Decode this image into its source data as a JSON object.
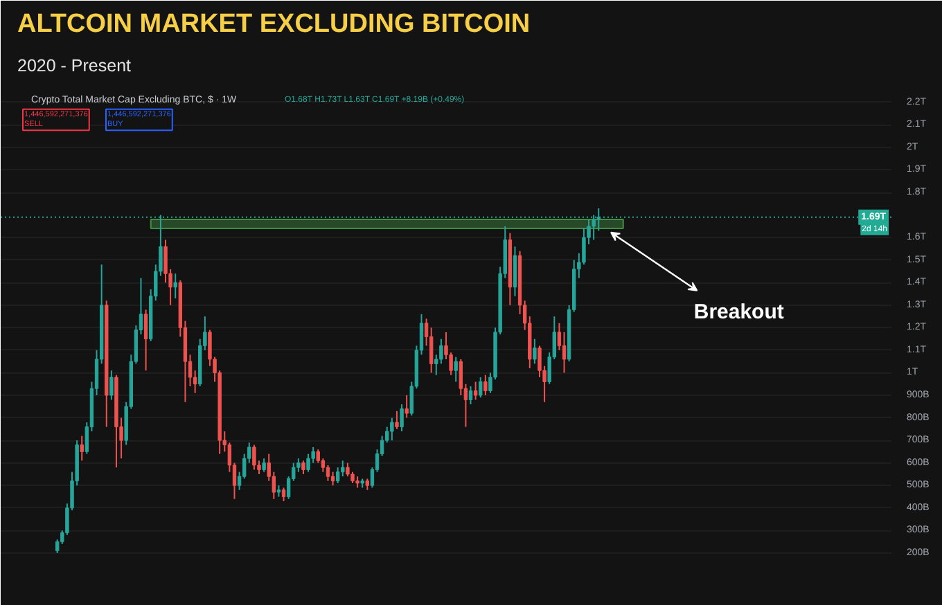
{
  "chart_data": {
    "type": "candlestick",
    "title": "ALTCOIN MARKET EXCLUDING BITCOIN",
    "subtitle": "2020 - Present",
    "annotations": [
      "Crypto Total Market Cap Excluding BTC, $ · 1W",
      "O1.68T H1.73T L1.63T C1.69T +8.19B (+0.49%)",
      "1,446,592,271,376\nSELL",
      "1,446,592,271,376\nBUY",
      "2d 14h",
      "Breakout"
    ],
    "categories": [
      null,
      null,
      null,
      null,
      null,
      null,
      null,
      null,
      null,
      null,
      null,
      null,
      null,
      null,
      null,
      null,
      null,
      null,
      null,
      null,
      null,
      null,
      null,
      null,
      null,
      null,
      null,
      null,
      null,
      null,
      null,
      null,
      null,
      null,
      null,
      null,
      null,
      null,
      null,
      null,
      null,
      null,
      null,
      null,
      null,
      null,
      null,
      null,
      null,
      null,
      null,
      null,
      null,
      null,
      null,
      null,
      null,
      null,
      null,
      null,
      null,
      null,
      null,
      null,
      null,
      null,
      null,
      null,
      null,
      null,
      null,
      null,
      null,
      null,
      null,
      null,
      null,
      null,
      null,
      null,
      null,
      null,
      null,
      null,
      null,
      null,
      null,
      null,
      null,
      null,
      null,
      null,
      null,
      null,
      null,
      null,
      null,
      null,
      null,
      null,
      null,
      null,
      null,
      null,
      null,
      null,
      null,
      null,
      null,
      null,
      null,
      null,
      null,
      null,
      null,
      null,
      null,
      null,
      null,
      null,
      null,
      null,
      null,
      null,
      null,
      null,
      null,
      null,
      null,
      null,
      null,
      null,
      null,
      null,
      null,
      null,
      null,
      null,
      null,
      null,
      null,
      null,
      null,
      null,
      null,
      null,
      null,
      null,
      null,
      null,
      null,
      null,
      null,
      null,
      null,
      null,
      null,
      null,
      null,
      null,
      null,
      null,
      null,
      null,
      null,
      null,
      null,
      null,
      null,
      null,
      null,
      null,
      null,
      null,
      null,
      null,
      null,
      null,
      null,
      null,
      null
    ],
    "ohlc": [
      null,
      null,
      null,
      null,
      null,
      null,
      null,
      null,
      null,
      null,
      null,
      [
        210000000000.0,
        260000000000.0,
        200000000000.0,
        250000000000.0
      ],
      [
        250000000000.0,
        300000000000.0,
        240000000000.0,
        290000000000.0
      ],
      [
        290000000000.0,
        420000000000.0,
        280000000000.0,
        400000000000.0
      ],
      [
        400000000000.0,
        560000000000.0,
        390000000000.0,
        520000000000.0
      ],
      [
        520000000000.0,
        700000000000.0,
        500000000000.0,
        680000000000.0
      ],
      [
        680000000000.0,
        720000000000.0,
        610000000000.0,
        650000000000.0
      ],
      [
        650000000000.0,
        780000000000.0,
        640000000000.0,
        760000000000.0
      ],
      [
        760000000000.0,
        960000000000.0,
        740000000000.0,
        930000000000.0
      ],
      [
        930000000000.0,
        1100000000000.0,
        900000000000.0,
        1060000000000.0
      ],
      [
        1060000000000.0,
        1480000000000.0,
        1040000000000.0,
        1300000000000.0
      ],
      [
        1300000000000.0,
        1320000000000.0,
        760000000000.0,
        900000000000.0
      ],
      [
        900000000000.0,
        1010000000000.0,
        880000000000.0,
        980000000000.0
      ],
      [
        980000000000.0,
        990000000000.0,
        580000000000.0,
        760000000000.0
      ],
      [
        760000000000.0,
        800000000000.0,
        620000000000.0,
        700000000000.0
      ],
      [
        700000000000.0,
        870000000000.0,
        680000000000.0,
        850000000000.0
      ],
      [
        850000000000.0,
        1080000000000.0,
        840000000000.0,
        1050000000000.0
      ],
      [
        1050000000000.0,
        1210000000000.0,
        1040000000000.0,
        1190000000000.0
      ],
      [
        1190000000000.0,
        1420000000000.0,
        1170000000000.0,
        1260000000000.0
      ],
      [
        1260000000000.0,
        1280000000000.0,
        1010000000000.0,
        1150000000000.0
      ],
      [
        1150000000000.0,
        1370000000000.0,
        1140000000000.0,
        1340000000000.0
      ],
      [
        1340000000000.0,
        1480000000000.0,
        1320000000000.0,
        1450000000000.0
      ],
      [
        1450000000000.0,
        1700000000000.0,
        1430000000000.0,
        1560000000000.0
      ],
      [
        1560000000000.0,
        1590000000000.0,
        1400000000000.0,
        1440000000000.0
      ],
      [
        1440000000000.0,
        1460000000000.0,
        1300000000000.0,
        1380000000000.0
      ],
      [
        1380000000000.0,
        1440000000000.0,
        1330000000000.0,
        1400000000000.0
      ],
      [
        1400000000000.0,
        1410000000000.0,
        1160000000000.0,
        1200000000000.0
      ],
      [
        1200000000000.0,
        1230000000000.0,
        870000000000.0,
        1050000000000.0
      ],
      [
        1050000000000.0,
        1080000000000.0,
        940000000000.0,
        980000000000.0
      ],
      [
        980000000000.0,
        1010000000000.0,
        910000000000.0,
        950000000000.0
      ],
      [
        950000000000.0,
        1150000000000.0,
        940000000000.0,
        1120000000000.0
      ],
      [
        1120000000000.0,
        1250000000000.0,
        1100000000000.0,
        1180000000000.0
      ],
      [
        1180000000000.0,
        1190000000000.0,
        1030000000000.0,
        1060000000000.0
      ],
      [
        1060000000000.0,
        1070000000000.0,
        960000000000.0,
        1000000000000.0
      ],
      [
        1000000000000.0,
        1010000000000.0,
        640000000000.0,
        700000000000.0
      ],
      [
        700000000000.0,
        740000000000.0,
        650000000000.0,
        680000000000.0
      ],
      [
        680000000000.0,
        690000000000.0,
        560000000000.0,
        590000000000.0
      ],
      [
        590000000000.0,
        600000000000.0,
        440000000000.0,
        500000000000.0
      ],
      [
        500000000000.0,
        560000000000.0,
        480000000000.0,
        540000000000.0
      ],
      [
        540000000000.0,
        640000000000.0,
        530000000000.0,
        620000000000.0
      ],
      [
        620000000000.0,
        690000000000.0,
        600000000000.0,
        670000000000.0
      ],
      [
        670000000000.0,
        680000000000.0,
        570000000000.0,
        590000000000.0
      ],
      [
        590000000000.0,
        610000000000.0,
        550000000000.0,
        570000000000.0
      ],
      [
        570000000000.0,
        620000000000.0,
        560000000000.0,
        600000000000.0
      ],
      [
        600000000000.0,
        640000000000.0,
        520000000000.0,
        540000000000.0
      ],
      [
        540000000000.0,
        560000000000.0,
        440000000000.0,
        470000000000.0
      ],
      [
        470000000000.0,
        500000000000.0,
        450000000000.0,
        480000000000.0
      ],
      [
        480000000000.0,
        490000000000.0,
        430000000000.0,
        450000000000.0
      ],
      [
        450000000000.0,
        540000000000.0,
        440000000000.0,
        530000000000.0
      ],
      [
        530000000000.0,
        600000000000.0,
        520000000000.0,
        580000000000.0
      ],
      [
        580000000000.0,
        620000000000.0,
        560000000000.0,
        600000000000.0
      ],
      [
        600000000000.0,
        610000000000.0,
        550000000000.0,
        570000000000.0
      ],
      [
        570000000000.0,
        640000000000.0,
        560000000000.0,
        620000000000.0
      ],
      [
        620000000000.0,
        670000000000.0,
        600000000000.0,
        650000000000.0
      ],
      [
        650000000000.0,
        660000000000.0,
        600000000000.0,
        610000000000.0
      ],
      [
        610000000000.0,
        620000000000.0,
        560000000000.0,
        580000000000.0
      ],
      [
        580000000000.0,
        590000000000.0,
        520000000000.0,
        540000000000.0
      ],
      [
        540000000000.0,
        560000000000.0,
        500000000000.0,
        520000000000.0
      ],
      [
        520000000000.0,
        580000000000.0,
        510000000000.0,
        560000000000.0
      ],
      [
        560000000000.0,
        610000000000.0,
        540000000000.0,
        580000000000.0
      ],
      [
        580000000000.0,
        600000000000.0,
        540000000000.0,
        550000000000.0
      ],
      [
        550000000000.0,
        560000000000.0,
        510000000000.0,
        520000000000.0
      ],
      [
        520000000000.0,
        540000000000.0,
        490000000000.0,
        510000000000.0
      ],
      [
        510000000000.0,
        530000000000.0,
        490000000000.0,
        520000000000.0
      ],
      [
        520000000000.0,
        530000000000.0,
        480000000000.0,
        500000000000.0
      ],
      [
        500000000000.0,
        580000000000.0,
        490000000000.0,
        570000000000.0
      ],
      [
        570000000000.0,
        660000000000.0,
        560000000000.0,
        640000000000.0
      ],
      [
        640000000000.0,
        720000000000.0,
        630000000000.0,
        700000000000.0
      ],
      [
        700000000000.0,
        760000000000.0,
        690000000000.0,
        740000000000.0
      ],
      [
        740000000000.0,
        800000000000.0,
        700000000000.0,
        780000000000.0
      ],
      [
        780000000000.0,
        830000000000.0,
        750000000000.0,
        760000000000.0
      ],
      [
        760000000000.0,
        860000000000.0,
        740000000000.0,
        840000000000.0
      ],
      [
        840000000000.0,
        900000000000.0,
        800000000000.0,
        820000000000.0
      ],
      [
        820000000000.0,
        960000000000.0,
        810000000000.0,
        940000000000.0
      ],
      [
        940000000000.0,
        1120000000000.0,
        930000000000.0,
        1100000000000.0
      ],
      [
        1100000000000.0,
        1260000000000.0,
        1080000000000.0,
        1220000000000.0
      ],
      [
        1220000000000.0,
        1240000000000.0,
        1120000000000.0,
        1160000000000.0
      ],
      [
        1160000000000.0,
        1200000000000.0,
        1000000000000.0,
        1040000000000.0
      ],
      [
        1040000000000.0,
        1080000000000.0,
        990000000000.0,
        1060000000000.0
      ],
      [
        1060000000000.0,
        1150000000000.0,
        1040000000000.0,
        1120000000000.0
      ],
      [
        1120000000000.0,
        1180000000000.0,
        1060000000000.0,
        1080000000000.0
      ],
      [
        1080000000000.0,
        1090000000000.0,
        990000000000.0,
        1010000000000.0
      ],
      [
        1010000000000.0,
        1070000000000.0,
        960000000000.0,
        1050000000000.0
      ],
      [
        1050000000000.0,
        1060000000000.0,
        900000000000.0,
        930000000000.0
      ],
      [
        930000000000.0,
        950000000000.0,
        760000000000.0,
        880000000000.0
      ],
      [
        880000000000.0,
        940000000000.0,
        860000000000.0,
        920000000000.0
      ],
      [
        920000000000.0,
        960000000000.0,
        880000000000.0,
        900000000000.0
      ],
      [
        900000000000.0,
        980000000000.0,
        890000000000.0,
        960000000000.0
      ],
      [
        960000000000.0,
        990000000000.0,
        900000000000.0,
        920000000000.0
      ],
      [
        920000000000.0,
        1000000000000.0,
        910000000000.0,
        980000000000.0
      ],
      [
        980000000000.0,
        1200000000000.0,
        970000000000.0,
        1180000000000.0
      ],
      [
        1180000000000.0,
        1470000000000.0,
        1170000000000.0,
        1440000000000.0
      ],
      [
        1440000000000.0,
        1650000000000.0,
        1420000000000.0,
        1590000000000.0
      ],
      [
        1590000000000.0,
        1620000000000.0,
        1300000000000.0,
        1380000000000.0
      ],
      [
        1380000000000.0,
        1560000000000.0,
        1340000000000.0,
        1520000000000.0
      ],
      [
        1520000000000.0,
        1540000000000.0,
        1260000000000.0,
        1300000000000.0
      ],
      [
        1300000000000.0,
        1320000000000.0,
        1190000000000.0,
        1220000000000.0
      ],
      [
        1220000000000.0,
        1250000000000.0,
        1020000000000.0,
        1060000000000.0
      ],
      [
        1060000000000.0,
        1150000000000.0,
        1040000000000.0,
        1110000000000.0
      ],
      [
        1110000000000.0,
        1120000000000.0,
        980000000000.0,
        1010000000000.0
      ],
      [
        1010000000000.0,
        1030000000000.0,
        870000000000.0,
        960000000000.0
      ],
      [
        960000000000.0,
        1090000000000.0,
        950000000000.0,
        1070000000000.0
      ],
      [
        1070000000000.0,
        1250000000000.0,
        1060000000000.0,
        1180000000000.0
      ],
      [
        1180000000000.0,
        1220000000000.0,
        1100000000000.0,
        1120000000000.0
      ],
      [
        1120000000000.0,
        1180000000000.0,
        1000000000000.0,
        1060000000000.0
      ],
      [
        1060000000000.0,
        1300000000000.0,
        1050000000000.0,
        1280000000000.0
      ],
      [
        1280000000000.0,
        1500000000000.0,
        1270000000000.0,
        1460000000000.0
      ],
      [
        1460000000000.0,
        1530000000000.0,
        1420000000000.0,
        1490000000000.0
      ],
      [
        1490000000000.0,
        1640000000000.0,
        1480000000000.0,
        1600000000000.0
      ],
      [
        1600000000000.0,
        1680000000000.0,
        1570000000000.0,
        1650000000000.0
      ],
      [
        1650000000000.0,
        1700000000000.0,
        1590000000000.0,
        1680000000000.0
      ],
      [
        1680000000000.0,
        1730000000000.0,
        1630000000000.0,
        1690000000000.0
      ],
      null,
      null,
      null,
      null,
      null,
      null,
      null,
      null,
      null,
      null,
      null,
      null,
      null,
      null,
      null,
      null,
      null,
      null,
      null,
      null,
      null,
      null,
      null,
      null,
      null,
      null,
      null,
      null,
      null,
      null,
      null,
      null,
      null,
      null,
      null,
      null,
      null,
      null,
      null,
      null,
      null,
      null,
      null,
      null,
      null,
      null,
      null,
      null,
      null,
      null,
      null,
      null,
      null,
      null,
      null,
      null,
      null,
      null,
      null
    ],
    "colors": [
      null,
      null,
      null,
      null,
      null,
      null,
      null,
      null,
      null,
      null,
      null,
      "#26a69a",
      "#26a69a",
      "#26a69a",
      "#26a69a",
      "#26a69a",
      "#ef5350",
      "#26a69a",
      "#26a69a",
      "#26a69a",
      "#26a69a",
      "#ef5350",
      "#26a69a",
      "#ef5350",
      "#ef5350",
      "#26a69a",
      "#26a69a",
      "#26a69a",
      "#26a69a",
      "#ef5350",
      "#26a69a",
      "#26a69a",
      "#26a69a",
      "#ef5350",
      "#ef5350",
      "#26a69a",
      "#ef5350",
      "#ef5350",
      "#ef5350",
      "#ef5350",
      "#26a69a",
      "#26a69a",
      "#ef5350",
      "#ef5350",
      "#ef5350",
      "#ef5350",
      "#ef5350",
      "#ef5350",
      "#26a69a",
      "#26a69a",
      "#26a69a",
      "#ef5350",
      "#ef5350",
      "#26a69a",
      "#ef5350",
      "#ef5350",
      "#26a69a",
      "#ef5350",
      "#26a69a",
      "#26a69a",
      "#26a69a",
      "#ef5350",
      "#26a69a",
      "#26a69a",
      "#ef5350",
      "#ef5350",
      "#ef5350",
      "#ef5350",
      "#26a69a",
      "#26a69a",
      "#ef5350",
      "#ef5350",
      "#ef5350",
      "#26a69a",
      "#ef5350",
      "#26a69a",
      "#26a69a",
      "#26a69a",
      "#26a69a",
      "#26a69a",
      "#ef5350",
      "#26a69a",
      "#ef5350",
      "#26a69a",
      "#26a69a",
      "#26a69a",
      "#ef5350",
      "#ef5350",
      "#26a69a",
      "#26a69a",
      "#ef5350",
      "#ef5350",
      "#26a69a",
      "#ef5350",
      "#ef5350",
      "#26a69a",
      "#ef5350",
      "#26a69a",
      "#ef5350",
      "#26a69a",
      "#26a69a",
      "#26a69a",
      "#26a69a",
      "#ef5350",
      "#26a69a",
      "#ef5350",
      "#ef5350",
      "#ef5350",
      "#26a69a",
      "#ef5350",
      "#ef5350",
      "#26a69a",
      "#26a69a",
      "#ef5350",
      "#ef5350",
      "#26a69a",
      "#26a69a",
      "#26a69a",
      "#26a69a",
      "#26a69a",
      "#26a69a",
      "#26a69a",
      null,
      null,
      null,
      null,
      null,
      null,
      null,
      null,
      null,
      null,
      null,
      null,
      null,
      null,
      null,
      null,
      null,
      null,
      null,
      null,
      null,
      null,
      null,
      null,
      null,
      null,
      null,
      null,
      null,
      null,
      null,
      null,
      null,
      null,
      null,
      null,
      null,
      null,
      null,
      null,
      null,
      null,
      null,
      null,
      null,
      null,
      null,
      null,
      null,
      null,
      null,
      null,
      null,
      null,
      null,
      null,
      null,
      null,
      null
    ],
    "ylim": [
      120000000000.0,
      2270000000000.0
    ],
    "yticks": [
      {
        "value": 200000000000.0,
        "label": "200B"
      },
      {
        "value": 300000000000.0,
        "label": "300B"
      },
      {
        "value": 400000000000.0,
        "label": "400B"
      },
      {
        "value": 500000000000.0,
        "label": "500B"
      },
      {
        "value": 600000000000.0,
        "label": "600B"
      },
      {
        "value": 700000000000.0,
        "label": "700B"
      },
      {
        "value": 800000000000.0,
        "label": "800B"
      },
      {
        "value": 900000000000.0,
        "label": "900B"
      },
      {
        "value": 1000000000000.0,
        "label": "1T"
      },
      {
        "value": 1100000000000.0,
        "label": "1.1T"
      },
      {
        "value": 1200000000000.0,
        "label": "1.2T"
      },
      {
        "value": 1300000000000.0,
        "label": "1.3T"
      },
      {
        "value": 1400000000000.0,
        "label": "1.4T"
      },
      {
        "value": 1500000000000.0,
        "label": "1.5T"
      },
      {
        "value": 1600000000000.0,
        "label": "1.6T"
      },
      {
        "value": 1800000000000.0,
        "label": "1.8T"
      },
      {
        "value": 1900000000000.0,
        "label": "1.9T"
      },
      {
        "value": 2000000000000.0,
        "label": "2T"
      },
      {
        "value": 2100000000000.0,
        "label": "2.1T"
      },
      {
        "value": 2200000000000.0,
        "label": "2.2T"
      }
    ],
    "grid": "y",
    "tick_labels": "y",
    "ref_lines": [
      {
        "axis": "y",
        "value": 1690000000000.0,
        "label": "1.69T",
        "color": "#22ab94",
        "line_style": "dotted"
      }
    ],
    "bands": [
      {
        "axis": "y",
        "from": 1640000000000.0,
        "to": 1680000000000.0,
        "color": "#4caf50"
      }
    ]
  }
}
